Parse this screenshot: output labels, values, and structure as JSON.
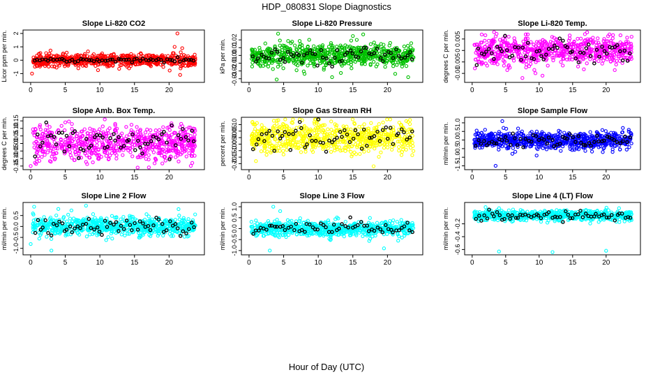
{
  "page": {
    "title": "HDP_080831  Slope Diagnostics",
    "xlabel": "Hour of Day (UTC)"
  },
  "colors": {
    "highlight": "#000000"
  },
  "chart_data": [
    {
      "type": "scatter",
      "title": "Slope Li-820 CO2",
      "ylabel": "Licor ppm per min.",
      "color": "#ff0000",
      "xlim": [
        -0.5,
        24.5
      ],
      "ylim": [
        -1.5,
        2.1
      ],
      "xticks": [
        0,
        5,
        10,
        15,
        20
      ],
      "yticks": [
        -1,
        0,
        1,
        2
      ],
      "ytick_labels": [
        "-1",
        "0",
        "1",
        "2"
      ],
      "spread": 0.22,
      "hl_spread": 0.08,
      "center": 0.0,
      "outliers": [
        [
          21.2,
          2.0
        ],
        [
          20.8,
          1.0
        ],
        [
          21.6,
          -1.1
        ],
        [
          0.2,
          -1.0
        ],
        [
          21.9,
          0.9
        ]
      ]
    },
    {
      "type": "scatter",
      "title": "Slope Li-820 Pressure",
      "ylabel": "kPa per min.",
      "color": "#00c000",
      "xlim": [
        -0.5,
        24.5
      ],
      "ylim": [
        -0.032,
        0.03
      ],
      "xticks": [
        0,
        5,
        10,
        15,
        20
      ],
      "yticks": [
        -0.03,
        -0.02,
        -0.01,
        0.0,
        0.01,
        0.02
      ],
      "ytick_labels": [
        "-0.03",
        "-0.02",
        "-0.01",
        "0.00",
        "0.01",
        "0.02"
      ],
      "spread": 0.0075,
      "hl_spread": 0.006,
      "center": 0.0,
      "outliers": [
        [
          4.0,
          -0.031
        ],
        [
          4.2,
          0.028
        ],
        [
          12.0,
          -0.028
        ],
        [
          15.0,
          0.025
        ],
        [
          23.0,
          -0.028
        ],
        [
          16.5,
          0.027
        ]
      ]
    },
    {
      "type": "scatter",
      "title": "Slope Li-820 Temp.",
      "ylabel": "degrees C per min.",
      "color": "#ff00ff",
      "xlim": [
        -0.5,
        24.5
      ],
      "ylim": [
        -0.013,
        0.008
      ],
      "xticks": [
        0,
        5,
        10,
        15,
        20
      ],
      "yticks": [
        -0.01,
        -0.005,
        0.0,
        0.005
      ],
      "ytick_labels": [
        "-0.01",
        "-0.005",
        "0",
        "0.005"
      ],
      "spread": 0.003,
      "hl_spread": 0.0025,
      "center": 0.0,
      "outliers": [
        [
          7.5,
          -0.012
        ],
        [
          10.5,
          -0.011
        ],
        [
          20.5,
          0.007
        ],
        [
          23.8,
          0.006
        ],
        [
          8.0,
          0.007
        ]
      ]
    },
    {
      "type": "scatter",
      "title": "Slope Amb. Box Temp.",
      "ylabel": "degrees C per min.",
      "color": "#ff00ff",
      "xlim": [
        -0.5,
        24.5
      ],
      "ylim": [
        -0.16,
        0.16
      ],
      "xticks": [
        0,
        5,
        10,
        15,
        20
      ],
      "yticks": [
        -0.15,
        -0.1,
        -0.05,
        0.0,
        0.05,
        0.1,
        0.15
      ],
      "ytick_labels": [
        "-0.15",
        "-0.10",
        "-0.05",
        "0.00",
        "0.05",
        "0.10",
        "0.15"
      ],
      "spread": 0.055,
      "hl_spread": 0.045,
      "center": 0.0,
      "outliers": [
        [
          0.0,
          -0.15
        ],
        [
          5.0,
          0.14
        ],
        [
          23.5,
          0.08
        ]
      ]
    },
    {
      "type": "scatter",
      "title": "Slope Gas Stream RH",
      "ylabel": "percent per min.",
      "color": "#ffff00",
      "xlim": [
        -0.5,
        24.5
      ],
      "ylim": [
        -0.23,
        0.14
      ],
      "xticks": [
        0,
        5,
        10,
        15,
        20
      ],
      "yticks": [
        -0.2,
        -0.15,
        -0.1,
        -0.05,
        0.0,
        0.05,
        0.1
      ],
      "ytick_labels": [
        "-0.20",
        "-0.15",
        "-0.10",
        "-0.05",
        "0.00",
        "0.05",
        "0.10"
      ],
      "spread": 0.06,
      "hl_spread": 0.05,
      "center": 0.0,
      "outliers": [
        [
          0.5,
          0.12
        ],
        [
          4.0,
          0.13
        ],
        [
          18.0,
          -0.22
        ],
        [
          23.0,
          0.12
        ],
        [
          1.0,
          -0.18
        ]
      ]
    },
    {
      "type": "scatter",
      "title": "Slope Sample Flow",
      "ylabel": "ml/min per min.",
      "color": "#0000ff",
      "xlim": [
        -0.5,
        24.5
      ],
      "ylim": [
        -1.6,
        1.2
      ],
      "xticks": [
        0,
        5,
        10,
        15,
        20
      ],
      "yticks": [
        -1.5,
        -1.0,
        -0.5,
        0.0,
        0.5,
        1.0
      ],
      "ytick_labels": [
        "-1.5",
        "-1.0",
        "-0.5",
        "0.0",
        "0.5",
        "1.0"
      ],
      "spread": 0.25,
      "hl_spread": 0.2,
      "center": 0.0,
      "outliers": [
        [
          3.5,
          -1.5
        ],
        [
          4.5,
          1.1
        ],
        [
          22.5,
          0.7
        ],
        [
          19.5,
          -0.7
        ],
        [
          6.0,
          -0.8
        ]
      ]
    },
    {
      "type": "scatter",
      "title": "Slope Line 2 Flow",
      "ylabel": "ml/min per min.",
      "color": "#00ffff",
      "xlim": [
        -0.5,
        24.5
      ],
      "ylim": [
        -1.2,
        1.0
      ],
      "xticks": [
        0,
        5,
        10,
        15,
        20
      ],
      "yticks": [
        -1.0,
        -0.5,
        0.0,
        0.5
      ],
      "ytick_labels": [
        "-1.0",
        "-0.5",
        "0.0",
        "0.5"
      ],
      "spread": 0.2,
      "hl_spread": 0.18,
      "center": 0.0,
      "outliers": [
        [
          0.0,
          -0.8
        ],
        [
          3.0,
          -1.1
        ],
        [
          8.0,
          0.95
        ],
        [
          0.5,
          0.9
        ],
        [
          4.0,
          0.8
        ]
      ]
    },
    {
      "type": "scatter",
      "title": "Slope Line 3 Flow",
      "ylabel": "ml/min per min.",
      "color": "#00ffff",
      "xlim": [
        -0.5,
        24.5
      ],
      "ylim": [
        -1.1,
        1.1
      ],
      "xticks": [
        0,
        5,
        10,
        15,
        20
      ],
      "yticks": [
        -1.0,
        -0.5,
        0.0,
        0.5,
        1.0
      ],
      "ytick_labels": [
        "-1.0",
        "-0.5",
        "0.0",
        "0.5",
        "1.0"
      ],
      "spread": 0.17,
      "hl_spread": 0.15,
      "center": 0.0,
      "outliers": [
        [
          3.5,
          1.0
        ],
        [
          3.0,
          -1.0
        ],
        [
          4.5,
          0.8
        ],
        [
          19.5,
          -0.9
        ],
        [
          22.0,
          0.4
        ]
      ]
    },
    {
      "type": "scatter",
      "title": "Slope Line 4 (LT) Flow",
      "ylabel": "ml/min per min.",
      "color": "#00ffff",
      "xlim": [
        -0.5,
        24.5
      ],
      "ylim": [
        -0.65,
        0.1
      ],
      "xticks": [
        0,
        5,
        10,
        15,
        20
      ],
      "yticks": [
        -0.6,
        -0.4,
        -0.2
      ],
      "ytick_labels": [
        "-0.6",
        "-0.4",
        "-0.2"
      ],
      "spread": 0.04,
      "hl_spread": 0.035,
      "center": -0.07,
      "outliers": [
        [
          4.0,
          -0.63
        ],
        [
          20.0,
          -0.62
        ],
        [
          12.0,
          -0.64
        ],
        [
          2.0,
          0.06
        ]
      ]
    }
  ]
}
